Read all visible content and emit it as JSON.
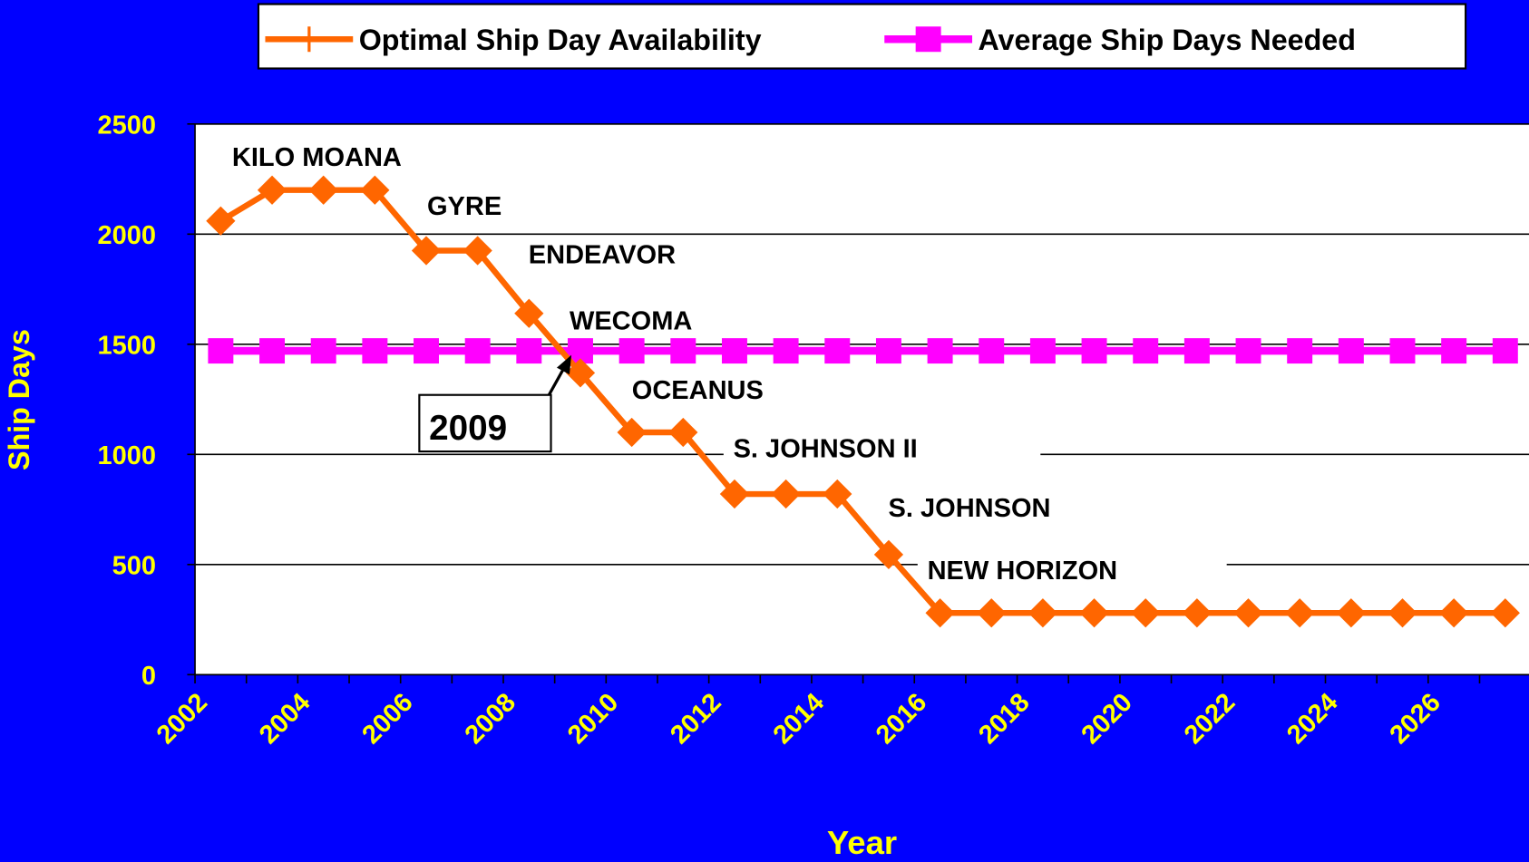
{
  "chart_data": {
    "type": "line",
    "x_label": "Year",
    "y_label": "Ship Days",
    "categories": [
      "2002",
      null,
      "2004",
      null,
      "2006",
      null,
      "2008",
      null,
      "2010",
      null,
      "2012",
      null,
      "2014",
      null,
      "2016",
      null,
      "2018",
      null,
      "2020",
      null,
      "2022",
      null,
      "2024",
      null,
      "2026",
      null
    ],
    "series": [
      {
        "name": "Optimal Ship Day Availability",
        "color": "#ff6600",
        "marker": "diamond",
        "values": [
          2060,
          2200,
          2200,
          2200,
          1925,
          1925,
          1640,
          1370,
          1100,
          1100,
          820,
          820,
          820,
          545,
          280,
          280,
          280,
          280,
          280,
          280,
          280,
          280,
          280,
          280,
          280,
          280
        ]
      },
      {
        "name": "Average Ship Days Needed",
        "color": "#ff00ff",
        "marker": "square",
        "values": [
          1470,
          1470,
          1470,
          1470,
          1470,
          1470,
          1470,
          1470,
          1470,
          1470,
          1470,
          1470,
          1470,
          1470,
          1470,
          1470,
          1470,
          1470,
          1470,
          1470,
          1470,
          1470,
          1470,
          1470,
          1470,
          1470
        ]
      }
    ],
    "ylim": [
      0,
      2500
    ],
    "yticks": [
      0,
      500,
      1000,
      1500,
      2000,
      2500
    ],
    "grid": true,
    "legend": "top",
    "annotations": [
      "KILO MOANA",
      "GYRE",
      "ENDEAVOR",
      "WECOMA",
      "OCEANUS",
      "S. JOHNSON II",
      "S. JOHNSON",
      "NEW HORIZON"
    ],
    "callout": "2009"
  }
}
